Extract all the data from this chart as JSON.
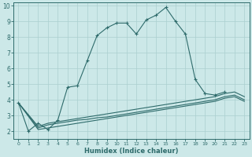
{
  "xlabel": "Humidex (Indice chaleur)",
  "xlim": [
    -0.5,
    23.5
  ],
  "ylim": [
    1.5,
    10.2
  ],
  "yticks": [
    2,
    3,
    4,
    5,
    6,
    7,
    8,
    9,
    10
  ],
  "xticks": [
    0,
    1,
    2,
    3,
    4,
    5,
    6,
    7,
    8,
    9,
    10,
    11,
    12,
    13,
    14,
    15,
    16,
    17,
    18,
    19,
    20,
    21,
    22,
    23
  ],
  "bg_color": "#cce8e8",
  "grid_color": "#aacfcf",
  "line_color": "#2e6b6b",
  "series": [
    {
      "x": [
        0,
        1,
        2,
        3,
        4,
        5,
        6,
        7,
        8,
        9,
        10,
        11,
        12,
        13,
        14,
        15,
        16,
        17,
        18,
        19,
        20,
        21
      ],
      "y": [
        3.8,
        2.0,
        2.5,
        2.1,
        2.7,
        4.8,
        4.9,
        6.5,
        8.1,
        8.6,
        8.9,
        8.9,
        8.2,
        9.1,
        9.4,
        9.9,
        9.0,
        8.2,
        5.3,
        4.4,
        4.3,
        4.5
      ],
      "marker": true
    },
    {
      "x": [
        0,
        2,
        3,
        4,
        5,
        6,
        7,
        8,
        9,
        10,
        11,
        12,
        13,
        14,
        15,
        16,
        17,
        18,
        19,
        20,
        21,
        22,
        23
      ],
      "y": [
        3.8,
        2.3,
        2.5,
        2.6,
        2.7,
        2.8,
        2.9,
        3.0,
        3.1,
        3.2,
        3.3,
        3.4,
        3.5,
        3.6,
        3.7,
        3.8,
        3.9,
        4.0,
        4.1,
        4.2,
        4.4,
        4.5,
        4.2
      ],
      "marker": false
    },
    {
      "x": [
        0,
        2,
        3,
        4,
        5,
        6,
        7,
        8,
        9,
        10,
        11,
        12,
        13,
        14,
        15,
        16,
        17,
        18,
        19,
        20,
        21,
        22,
        23
      ],
      "y": [
        3.8,
        2.2,
        2.4,
        2.5,
        2.6,
        2.7,
        2.75,
        2.85,
        2.9,
        3.0,
        3.1,
        3.2,
        3.3,
        3.4,
        3.5,
        3.6,
        3.7,
        3.8,
        3.9,
        4.0,
        4.2,
        4.3,
        4.0
      ],
      "marker": false
    },
    {
      "x": [
        0,
        2,
        3,
        4,
        5,
        6,
        7,
        8,
        9,
        10,
        11,
        12,
        13,
        14,
        15,
        16,
        17,
        18,
        19,
        20,
        21,
        22,
        23
      ],
      "y": [
        3.8,
        2.1,
        2.2,
        2.3,
        2.4,
        2.5,
        2.6,
        2.7,
        2.8,
        2.9,
        3.0,
        3.1,
        3.2,
        3.3,
        3.4,
        3.5,
        3.6,
        3.7,
        3.8,
        3.9,
        4.1,
        4.2,
        3.9
      ],
      "marker": false
    }
  ]
}
